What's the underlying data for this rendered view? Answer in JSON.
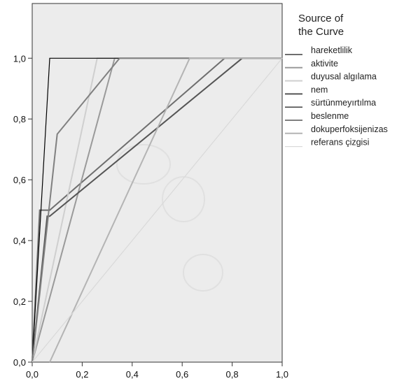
{
  "chart_data": {
    "type": "line",
    "title": "",
    "xlabel": "",
    "ylabel": "",
    "xlim": [
      0,
      1
    ],
    "ylim": [
      0,
      1.18
    ],
    "x_ticks": [
      "0,0",
      "0,2",
      "0,4",
      "0,6",
      "0,8",
      "1,0"
    ],
    "y_ticks": [
      "0,0",
      "0,2",
      "0,4",
      "0,6",
      "0,8",
      "1,0"
    ],
    "grid": false,
    "background": "#ececec",
    "legend": {
      "title_lines": [
        "Source of",
        "the Curve"
      ],
      "placement": "right"
    },
    "series": [
      {
        "name": "hareketlilik",
        "color": "#6e6e6e",
        "points": [
          [
            0,
            0
          ],
          [
            0.03,
            0.5
          ],
          [
            0.07,
            0.5
          ],
          [
            0.77,
            1.0
          ],
          [
            1,
            1
          ]
        ]
      },
      {
        "name": "aktivite",
        "color": "#9a9a9a",
        "points": [
          [
            0,
            0
          ],
          [
            0.33,
            1.0
          ],
          [
            1,
            1
          ]
        ]
      },
      {
        "name": "duyusal algılama",
        "color": "#cfcfcf",
        "points": [
          [
            0,
            0
          ],
          [
            0.26,
            1.0
          ],
          [
            1,
            1
          ]
        ]
      },
      {
        "name": "nem",
        "color": "#555555",
        "points": [
          [
            0,
            0
          ],
          [
            0.06,
            0.48
          ],
          [
            0.07,
            0.48
          ],
          [
            0.84,
            1.0
          ],
          [
            1,
            1
          ]
        ]
      },
      {
        "name": "sürtünmeyırtılma",
        "color": "#000000",
        "points": [
          [
            0,
            0
          ],
          [
            0.07,
            1.0
          ],
          [
            1,
            1
          ]
        ]
      },
      {
        "name": "beslenme",
        "color": "#808080",
        "points": [
          [
            0,
            0
          ],
          [
            0.1,
            0.75
          ],
          [
            0.35,
            1.0
          ],
          [
            1,
            1
          ]
        ]
      },
      {
        "name": "dokuperfoksijenizas",
        "color": "#b4b4b4",
        "points": [
          [
            0.07,
            0
          ],
          [
            0.63,
            1.0
          ],
          [
            1,
            1
          ]
        ]
      },
      {
        "name": "referans çizgisi",
        "color": "#d9d9d9",
        "points": [
          [
            0,
            0
          ],
          [
            1,
            1
          ]
        ]
      }
    ]
  }
}
